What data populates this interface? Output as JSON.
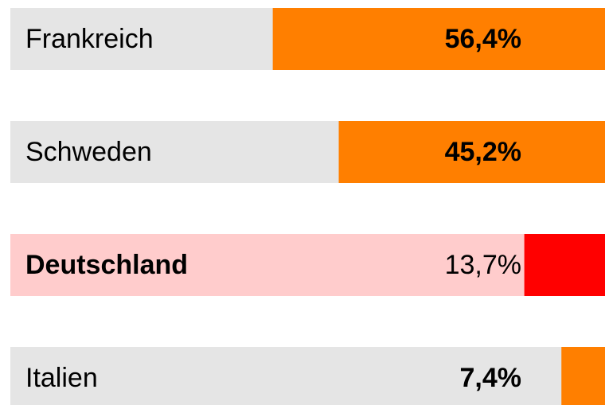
{
  "chart_data": {
    "type": "bar",
    "orientation": "horizontal",
    "categories": [
      "Frankreich",
      "Schweden",
      "Deutschland",
      "Italien"
    ],
    "values": [
      56.4,
      45.2,
      13.7,
      7.4
    ],
    "value_labels": [
      "56,4%",
      "45,2%",
      "13,7%",
      "7,4%"
    ],
    "colors": [
      "#ff7f00",
      "#ff7f00",
      "#ff0000",
      "#ff7f00"
    ],
    "row_colors": [
      "#e5e5e5",
      "#e5e5e5",
      "#ffcccc",
      "#e5e5e5"
    ],
    "emphasis": [
      false,
      false,
      true,
      false
    ]
  }
}
